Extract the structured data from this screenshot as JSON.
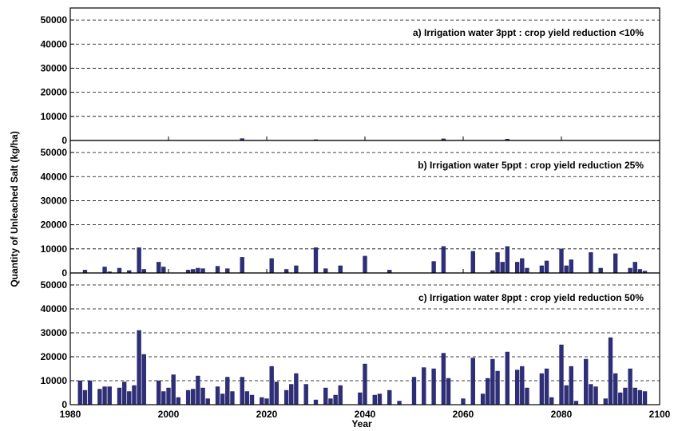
{
  "chart_data": {
    "type": "bar",
    "xlabel": "Year",
    "ylabel": "Quantity of Unleached Salt (kg/ha)",
    "xlim": [
      1980,
      2100
    ],
    "ylim": [
      0,
      55000
    ],
    "xticks": [
      "1980",
      "2000",
      "2020",
      "2040",
      "2060",
      "2080",
      "2100"
    ],
    "yticks": [
      "0",
      "10000",
      "20000",
      "30000",
      "40000",
      "50000"
    ],
    "bar_color": "#2e2e7a",
    "grid": "horizontal dashed",
    "panels": [
      {
        "title": "a) Irrigation water 3ppt : crop yield reduction <10%",
        "bars": [
          {
            "x": 2015,
            "y": 800
          },
          {
            "x": 2030,
            "y": 300
          },
          {
            "x": 2056,
            "y": 700
          },
          {
            "x": 2069,
            "y": 600
          }
        ]
      },
      {
        "title": "b) Irrigation water 5ppt : crop yield reduction 25%",
        "bars": [
          {
            "x": 1983,
            "y": 1200
          },
          {
            "x": 1987,
            "y": 2500
          },
          {
            "x": 1988,
            "y": 500
          },
          {
            "x": 1990,
            "y": 2000
          },
          {
            "x": 1992,
            "y": 1000
          },
          {
            "x": 1994,
            "y": 10500
          },
          {
            "x": 1995,
            "y": 1500
          },
          {
            "x": 1998,
            "y": 4500
          },
          {
            "x": 1999,
            "y": 2500
          },
          {
            "x": 2004,
            "y": 1200
          },
          {
            "x": 2005,
            "y": 1500
          },
          {
            "x": 2006,
            "y": 2000
          },
          {
            "x": 2007,
            "y": 1800
          },
          {
            "x": 2010,
            "y": 2800
          },
          {
            "x": 2012,
            "y": 1800
          },
          {
            "x": 2015,
            "y": 6500
          },
          {
            "x": 2021,
            "y": 6000
          },
          {
            "x": 2024,
            "y": 1500
          },
          {
            "x": 2026,
            "y": 3000
          },
          {
            "x": 2030,
            "y": 10500
          },
          {
            "x": 2032,
            "y": 1800
          },
          {
            "x": 2035,
            "y": 3000
          },
          {
            "x": 2040,
            "y": 7000
          },
          {
            "x": 2045,
            "y": 1200
          },
          {
            "x": 2054,
            "y": 4800
          },
          {
            "x": 2056,
            "y": 11000
          },
          {
            "x": 2062,
            "y": 9000
          },
          {
            "x": 2066,
            "y": 1000
          },
          {
            "x": 2067,
            "y": 8500
          },
          {
            "x": 2068,
            "y": 4500
          },
          {
            "x": 2069,
            "y": 11000
          },
          {
            "x": 2071,
            "y": 4500
          },
          {
            "x": 2072,
            "y": 6000
          },
          {
            "x": 2073,
            "y": 2000
          },
          {
            "x": 2076,
            "y": 3000
          },
          {
            "x": 2077,
            "y": 5000
          },
          {
            "x": 2080,
            "y": 10000
          },
          {
            "x": 2081,
            "y": 3000
          },
          {
            "x": 2082,
            "y": 5500
          },
          {
            "x": 2086,
            "y": 8500
          },
          {
            "x": 2088,
            "y": 2000
          },
          {
            "x": 2091,
            "y": 8000
          },
          {
            "x": 2094,
            "y": 2000
          },
          {
            "x": 2095,
            "y": 4500
          },
          {
            "x": 2096,
            "y": 1500
          },
          {
            "x": 2097,
            "y": 800
          }
        ]
      },
      {
        "title": "c) Irrigation water 8ppt : crop yield reduction 50%",
        "bars": [
          {
            "x": 1982,
            "y": 10000
          },
          {
            "x": 1983,
            "y": 6000
          },
          {
            "x": 1984,
            "y": 10000
          },
          {
            "x": 1986,
            "y": 6500
          },
          {
            "x": 1987,
            "y": 7500
          },
          {
            "x": 1988,
            "y": 7500
          },
          {
            "x": 1990,
            "y": 7000
          },
          {
            "x": 1991,
            "y": 9500
          },
          {
            "x": 1992,
            "y": 5500
          },
          {
            "x": 1993,
            "y": 8000
          },
          {
            "x": 1994,
            "y": 31000
          },
          {
            "x": 1995,
            "y": 21000
          },
          {
            "x": 1998,
            "y": 10000
          },
          {
            "x": 1999,
            "y": 5500
          },
          {
            "x": 2000,
            "y": 7000
          },
          {
            "x": 2001,
            "y": 12500
          },
          {
            "x": 2002,
            "y": 3000
          },
          {
            "x": 2004,
            "y": 6000
          },
          {
            "x": 2005,
            "y": 6500
          },
          {
            "x": 2006,
            "y": 12000
          },
          {
            "x": 2007,
            "y": 7000
          },
          {
            "x": 2008,
            "y": 2500
          },
          {
            "x": 2010,
            "y": 7500
          },
          {
            "x": 2011,
            "y": 4500
          },
          {
            "x": 2012,
            "y": 11500
          },
          {
            "x": 2013,
            "y": 5500
          },
          {
            "x": 2015,
            "y": 11500
          },
          {
            "x": 2016,
            "y": 5500
          },
          {
            "x": 2017,
            "y": 4000
          },
          {
            "x": 2019,
            "y": 3000
          },
          {
            "x": 2020,
            "y": 2500
          },
          {
            "x": 2021,
            "y": 16000
          },
          {
            "x": 2022,
            "y": 9500
          },
          {
            "x": 2024,
            "y": 6000
          },
          {
            "x": 2025,
            "y": 8500
          },
          {
            "x": 2026,
            "y": 13000
          },
          {
            "x": 2028,
            "y": 8500
          },
          {
            "x": 2030,
            "y": 2000
          },
          {
            "x": 2032,
            "y": 7000
          },
          {
            "x": 2033,
            "y": 2500
          },
          {
            "x": 2034,
            "y": 4000
          },
          {
            "x": 2035,
            "y": 8000
          },
          {
            "x": 2039,
            "y": 5000
          },
          {
            "x": 2040,
            "y": 17000
          },
          {
            "x": 2042,
            "y": 4000
          },
          {
            "x": 2043,
            "y": 4500
          },
          {
            "x": 2045,
            "y": 6000
          },
          {
            "x": 2047,
            "y": 1500
          },
          {
            "x": 2050,
            "y": 11500
          },
          {
            "x": 2052,
            "y": 15500
          },
          {
            "x": 2054,
            "y": 15000
          },
          {
            "x": 2056,
            "y": 21500
          },
          {
            "x": 2057,
            "y": 11000
          },
          {
            "x": 2060,
            "y": 2500
          },
          {
            "x": 2062,
            "y": 19500
          },
          {
            "x": 2064,
            "y": 4500
          },
          {
            "x": 2065,
            "y": 11000
          },
          {
            "x": 2066,
            "y": 19000
          },
          {
            "x": 2067,
            "y": 14000
          },
          {
            "x": 2069,
            "y": 22000
          },
          {
            "x": 2071,
            "y": 14500
          },
          {
            "x": 2072,
            "y": 16000
          },
          {
            "x": 2073,
            "y": 7000
          },
          {
            "x": 2076,
            "y": 13000
          },
          {
            "x": 2077,
            "y": 15000
          },
          {
            "x": 2078,
            "y": 3000
          },
          {
            "x": 2080,
            "y": 25000
          },
          {
            "x": 2081,
            "y": 8000
          },
          {
            "x": 2082,
            "y": 16000
          },
          {
            "x": 2083,
            "y": 1500
          },
          {
            "x": 2085,
            "y": 19000
          },
          {
            "x": 2086,
            "y": 8500
          },
          {
            "x": 2087,
            "y": 7500
          },
          {
            "x": 2089,
            "y": 2500
          },
          {
            "x": 2090,
            "y": 28000
          },
          {
            "x": 2091,
            "y": 13000
          },
          {
            "x": 2092,
            "y": 5000
          },
          {
            "x": 2093,
            "y": 7000
          },
          {
            "x": 2094,
            "y": 15000
          },
          {
            "x": 2095,
            "y": 7000
          },
          {
            "x": 2096,
            "y": 6000
          },
          {
            "x": 2097,
            "y": 5500
          }
        ]
      }
    ]
  }
}
